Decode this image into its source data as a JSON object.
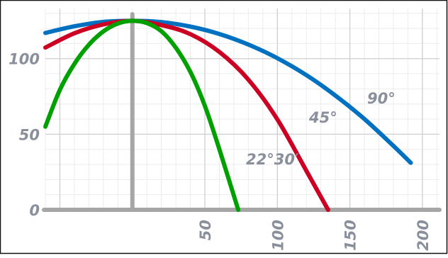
{
  "chart_data": {
    "type": "line",
    "title": "",
    "xlabel": "",
    "ylabel": "",
    "xlim": [
      -60,
      203
    ],
    "ylim": [
      0,
      128
    ],
    "x_ticks": [
      "50",
      "100",
      "150",
      "200"
    ],
    "x_tick_values": [
      50,
      100,
      150,
      200
    ],
    "y_ticks": [
      "0",
      "50",
      "100"
    ],
    "y_tick_values": [
      0,
      50,
      100
    ],
    "grid": true,
    "legend": "none",
    "series": [
      {
        "name": "90°",
        "color": "#0070c0",
        "x": [
          -60,
          -40,
          -20,
          0,
          20,
          40,
          60,
          80,
          100,
          120,
          140,
          160,
          180,
          192
        ],
        "y": [
          117,
          121.4,
          124.3,
          125,
          124.2,
          121.2,
          116.3,
          109.3,
          100.3,
          89.1,
          75.6,
          60.1,
          42.3,
          31.1
        ]
      },
      {
        "name": "45°",
        "color": "#cc0022",
        "x": [
          -60,
          -40,
          -20,
          0,
          20,
          40,
          60,
          80,
          100,
          120,
          135
        ],
        "y": [
          107.3,
          116.8,
          122.6,
          125,
          122.2,
          116.2,
          104.4,
          86.1,
          59.8,
          25.8,
          0
        ]
      },
      {
        "name": "22°30′",
        "color": "#00a000",
        "x": [
          -60,
          -50,
          -40,
          -30,
          -20,
          -10,
          0,
          10,
          20,
          30,
          40,
          50,
          60,
          73
        ],
        "y": [
          55,
          79.4,
          96.5,
          109.2,
          118,
          123.2,
          125,
          123.5,
          118.1,
          107.2,
          91.2,
          68.8,
          40,
          0
        ]
      }
    ],
    "line_labels": [
      {
        "series": 0,
        "text": "90°"
      },
      {
        "series": 1,
        "text": "45°"
      },
      {
        "series": 2,
        "text": "22°30′"
      }
    ]
  }
}
